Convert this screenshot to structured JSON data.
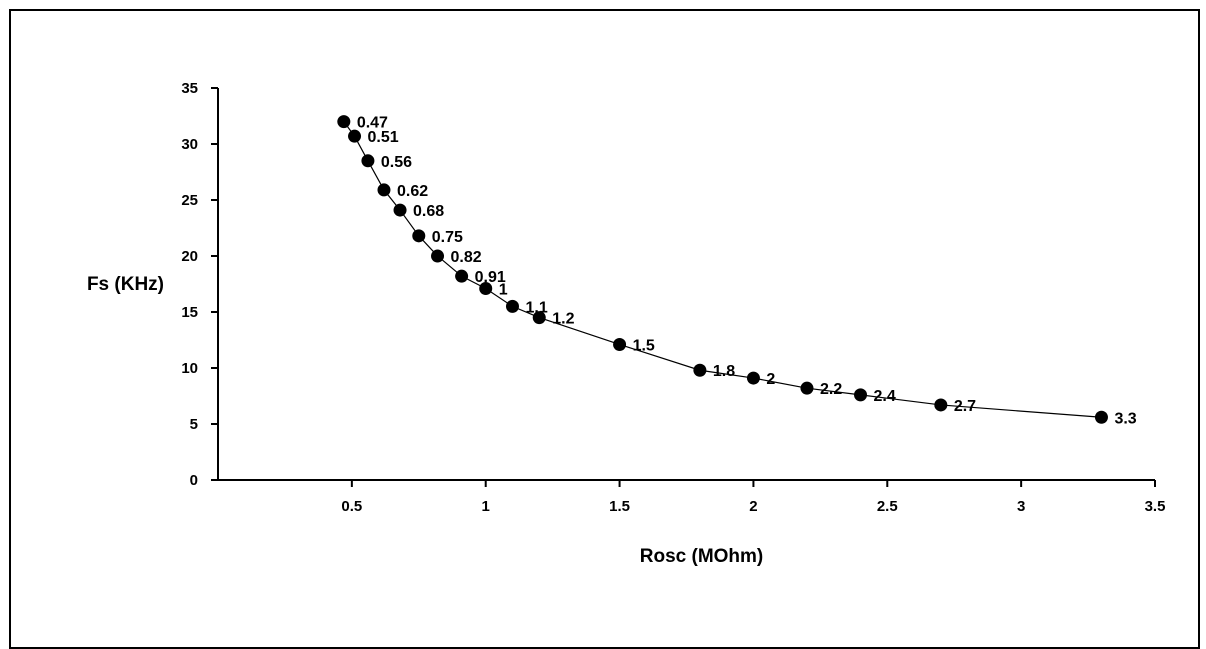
{
  "chart_data": {
    "type": "scatter",
    "xlabel": "Rosc (MOhm)",
    "ylabel": "Fs (KHz)",
    "xlim": [
      0,
      3.5
    ],
    "ylim": [
      0,
      35
    ],
    "xticks": [
      "0.5",
      "1",
      "1.5",
      "2",
      "2.5",
      "3",
      "3.5"
    ],
    "yticks": [
      "0",
      "5",
      "10",
      "15",
      "20",
      "25",
      "30",
      "35"
    ],
    "grid": false,
    "legend": "none",
    "line_connected": true,
    "series": [
      {
        "x": [
          0.47,
          0.51,
          0.56,
          0.62,
          0.68,
          0.75,
          0.82,
          0.91,
          1.0,
          1.1,
          1.2,
          1.5,
          1.8,
          2.0,
          2.2,
          2.4,
          2.7,
          3.3
        ],
        "y": [
          32.0,
          30.7,
          28.5,
          25.9,
          24.1,
          21.8,
          20.0,
          18.2,
          17.1,
          15.5,
          14.5,
          12.1,
          9.8,
          9.1,
          8.2,
          7.6,
          6.7,
          5.6
        ],
        "labels": [
          "0.47",
          "0.51",
          "0.56",
          "0.62",
          "0.68",
          "0.75",
          "0.82",
          "0.91",
          "1",
          "1.1",
          "1.2",
          "1.5",
          "1.8",
          "2",
          "2.2",
          "2.4",
          "2.7",
          "3.3"
        ]
      }
    ]
  }
}
